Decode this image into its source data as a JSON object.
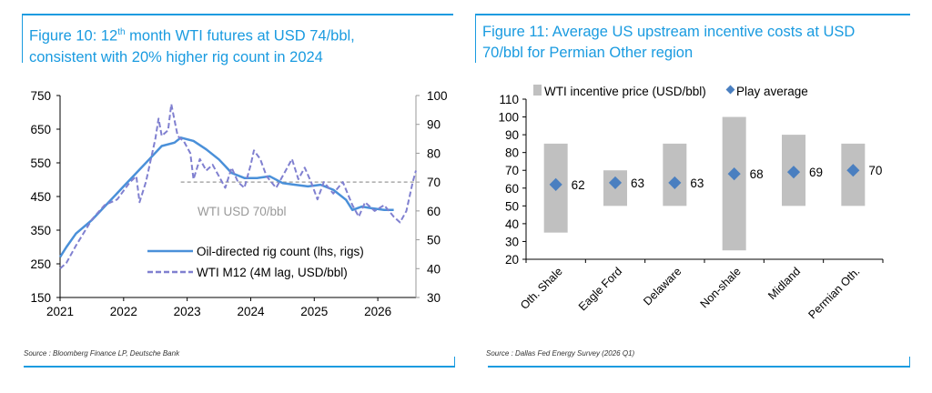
{
  "colors": {
    "accent": "#1a9be0",
    "rig_line": "#4a90d9",
    "wti_line": "#8080d0",
    "bar": "#c0c0c0",
    "diamond": "#4a7fc0",
    "ref_line": "#999999"
  },
  "left_panel": {
    "title_prefix": "Figure 10: 12",
    "title_sup": "th",
    "title_rest": " month WTI futures at USD 74/bbl,",
    "title_line2": "consistent with 20% higher rig count in 2024",
    "source": "Source : Bloomberg Finance LP, Deutsche Bank"
  },
  "right_panel": {
    "title_line1": "Figure 11: Average US upstream incentive costs at USD",
    "title_line2": "70/bbl for Permian Other region",
    "source": "Source : Dallas Fed Energy Survey (2026 Q1)"
  },
  "chart_data": [
    {
      "type": "line",
      "x_ticks": [
        "2021",
        "2022",
        "2023",
        "2024",
        "2025",
        "2026"
      ],
      "xlim": [
        2021,
        2026.6
      ],
      "y_left": {
        "ticks": [
          150,
          250,
          350,
          450,
          550,
          650,
          750
        ],
        "lim": [
          150,
          750
        ]
      },
      "y_right": {
        "ticks": [
          30,
          40,
          50,
          60,
          70,
          80,
          90,
          100
        ],
        "lim": [
          30,
          100
        ]
      },
      "annotation": {
        "text": "WTI USD 70/bbl",
        "value": 70,
        "from": 2022.9
      },
      "legend_placement": "bottom-right",
      "series": [
        {
          "name": "Oil-directed rig count (lhs, rigs)",
          "axis": "left",
          "style": "solid",
          "x": [
            2021.0,
            2021.1,
            2021.25,
            2021.5,
            2021.75,
            2022.0,
            2022.2,
            2022.4,
            2022.6,
            2022.8,
            2022.9,
            2023.1,
            2023.3,
            2023.5,
            2023.7,
            2023.9,
            2024.1,
            2024.3,
            2024.5,
            2024.7,
            2024.9,
            2025.1,
            2025.3,
            2025.5,
            2025.6,
            2025.75,
            2025.9,
            2026.1,
            2026.25
          ],
          "y": [
            270,
            300,
            340,
            380,
            430,
            480,
            520,
            560,
            600,
            610,
            625,
            615,
            590,
            560,
            520,
            505,
            505,
            510,
            490,
            485,
            480,
            485,
            470,
            440,
            410,
            420,
            415,
            410,
            410
          ]
        },
        {
          "name": "WTI M12 (4M lag, USD/bbl)",
          "axis": "right",
          "style": "dashed",
          "x": [
            2021.0,
            2021.1,
            2021.25,
            2021.5,
            2021.7,
            2021.9,
            2022.1,
            2022.2,
            2022.25,
            2022.35,
            2022.5,
            2022.55,
            2022.6,
            2022.7,
            2022.75,
            2022.85,
            2022.95,
            2023.05,
            2023.1,
            2023.2,
            2023.3,
            2023.4,
            2023.5,
            2023.6,
            2023.7,
            2023.8,
            2023.9,
            2024.0,
            2024.05,
            2024.15,
            2024.25,
            2024.4,
            2024.55,
            2024.65,
            2024.75,
            2024.85,
            2024.95,
            2025.05,
            2025.15,
            2025.3,
            2025.45,
            2025.6,
            2025.7,
            2025.8,
            2025.95,
            2026.1,
            2026.25,
            2026.35,
            2026.45,
            2026.55,
            2026.6
          ],
          "y": [
            40,
            42,
            48,
            57,
            62,
            64,
            70,
            72,
            63,
            70,
            85,
            92,
            86,
            88,
            97,
            86,
            84,
            80,
            71,
            78,
            74,
            76,
            72,
            68,
            75,
            70,
            68,
            76,
            81,
            78,
            72,
            68,
            74,
            78,
            71,
            75,
            70,
            64,
            70,
            66,
            70,
            62,
            58,
            63,
            60,
            62,
            58,
            56,
            60,
            70,
            74
          ]
        }
      ]
    },
    {
      "type": "bar",
      "categories": [
        "Oth. Shale",
        "Eagle Ford",
        "Delaware",
        "Non-shale",
        "Midland",
        "Permian Oth."
      ],
      "ylim": [
        20,
        110
      ],
      "y_ticks": [
        20,
        30,
        40,
        50,
        60,
        70,
        80,
        90,
        100,
        110
      ],
      "legend_placement": "top",
      "series": [
        {
          "name": "WTI incentive price (USD/bbl)",
          "type": "floating-bar",
          "low": [
            35,
            50,
            50,
            25,
            50,
            50
          ],
          "high": [
            85,
            70,
            85,
            100,
            90,
            85
          ]
        },
        {
          "name": "Play average",
          "type": "diamond",
          "values": [
            62,
            63,
            63,
            68,
            69,
            70
          ],
          "labels": [
            "62",
            "63",
            "63",
            "68",
            "69",
            "70"
          ]
        }
      ]
    }
  ]
}
